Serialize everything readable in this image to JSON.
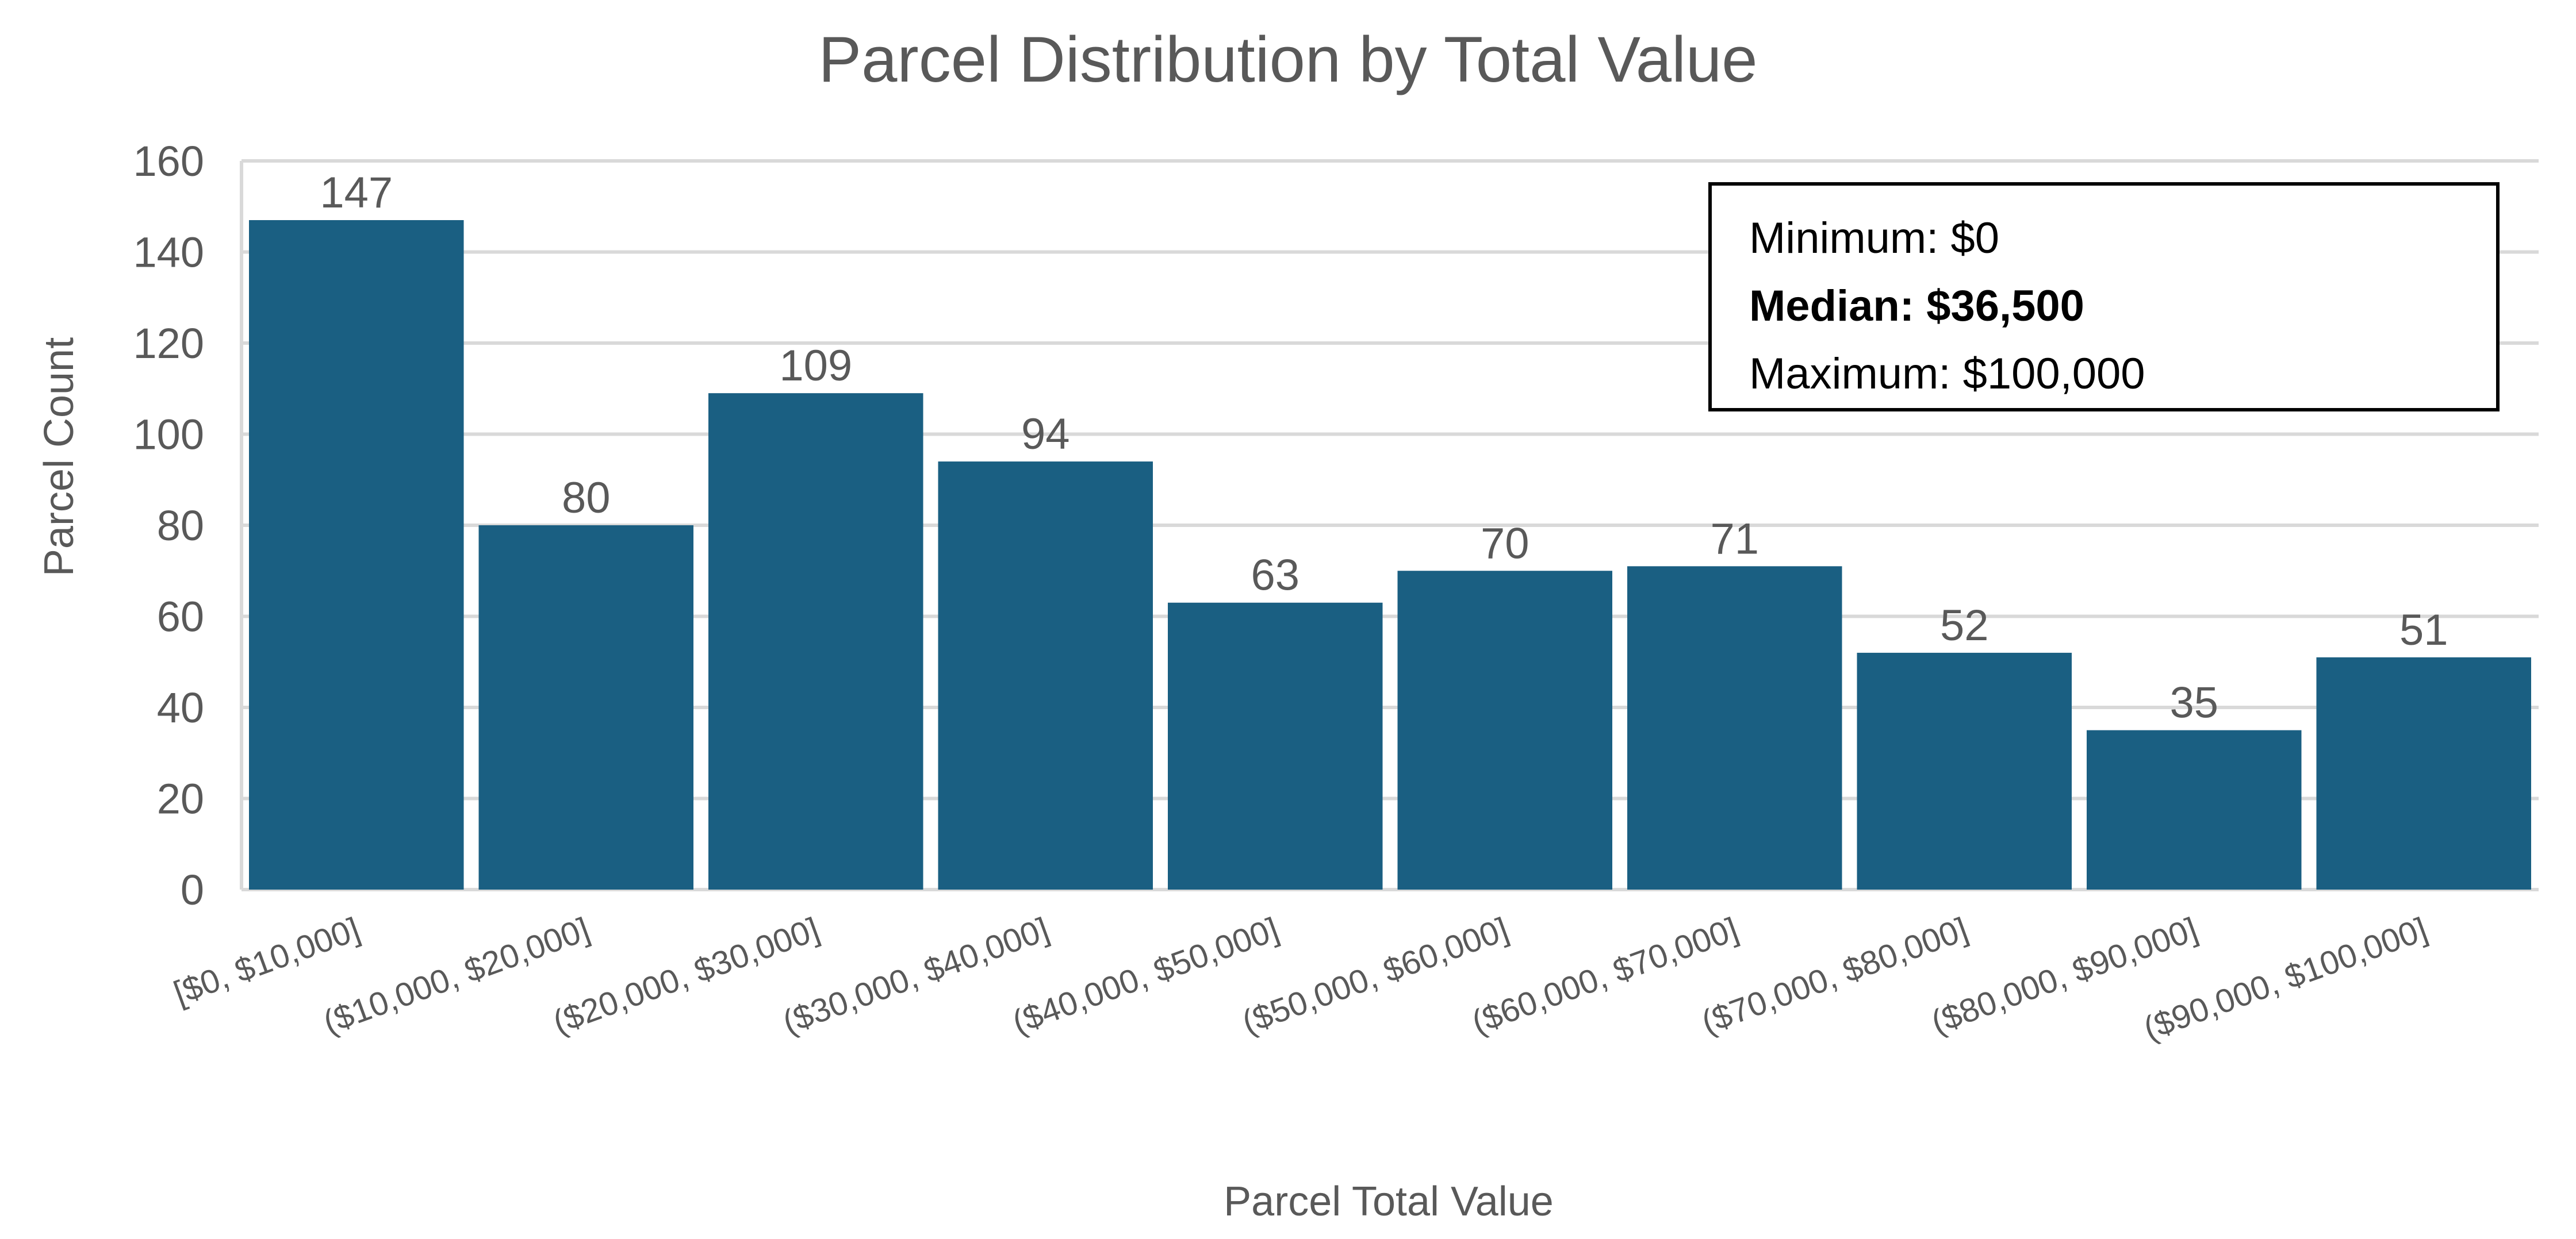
{
  "chart_data": {
    "type": "bar",
    "title": "Parcel Distribution by Total Value",
    "xlabel": "Parcel Total Value",
    "ylabel": "Parcel Count",
    "ylim": [
      0,
      160
    ],
    "yticks": [
      0,
      20,
      40,
      60,
      80,
      100,
      120,
      140,
      160
    ],
    "grid": true,
    "bar_color": "#1a5f82",
    "categories": [
      "[$0, $10,000]",
      "($10,000, $20,000]",
      "($20,000, $30,000]",
      "($30,000, $40,000]",
      "($40,000, $50,000]",
      "($50,000, $60,000]",
      "($60,000, $70,000]",
      "($70,000, $80,000]",
      "($80,000, $90,000]",
      "($90,000, $100,000]"
    ],
    "values": [
      147,
      80,
      109,
      94,
      63,
      70,
      71,
      52,
      35,
      51
    ],
    "annotation": {
      "minimum": "Minimum: $0",
      "median": "Median: $36,500",
      "maximum": "Maximum: $100,000"
    }
  }
}
